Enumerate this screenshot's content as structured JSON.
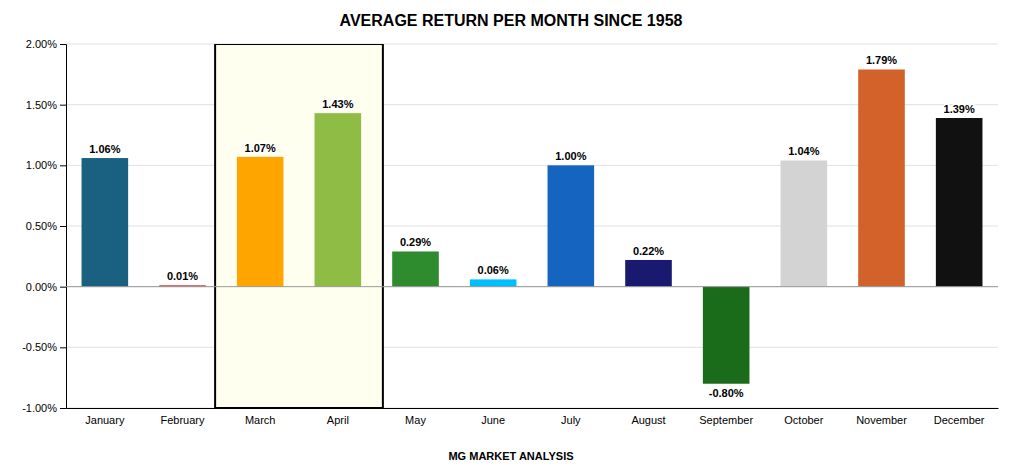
{
  "chart_data": {
    "type": "bar",
    "title": "AVERAGE RETURN PER MONTH SINCE 1958",
    "categories": [
      "January",
      "February",
      "March",
      "April",
      "May",
      "June",
      "July",
      "August",
      "September",
      "October",
      "November",
      "December"
    ],
    "values": [
      1.06,
      0.01,
      1.07,
      1.43,
      0.29,
      0.06,
      1.0,
      0.22,
      -0.8,
      1.04,
      1.79,
      1.39
    ],
    "value_labels": [
      "1.06%",
      "0.01%",
      "1.07%",
      "1.43%",
      "0.29%",
      "0.06%",
      "1.00%",
      "0.22%",
      "-0.80%",
      "1.04%",
      "1.79%",
      "1.39%"
    ],
    "colors": [
      "#1a6080",
      "#cc0000",
      "#ffa500",
      "#8fbc45",
      "#2e8b2e",
      "#00bfff",
      "#1565c0",
      "#191970",
      "#1a6b1a",
      "#d3d3d3",
      "#d2622a",
      "#111111"
    ],
    "highlight": [
      "March",
      "April"
    ],
    "annotations": [
      "MG MARKET ANALYSIS"
    ],
    "ylim": [
      -1.0,
      2.0
    ],
    "yticks": [
      {
        "value": -1.0,
        "label": "-1.00%"
      },
      {
        "value": -0.5,
        "label": "-0.50%"
      },
      {
        "value": 0.0,
        "label": "0.00%"
      },
      {
        "value": 0.5,
        "label": "0.50%"
      },
      {
        "value": 1.0,
        "label": "1.00%"
      },
      {
        "value": 1.5,
        "label": "1.50%"
      },
      {
        "value": 2.0,
        "label": "2.00%"
      }
    ],
    "grid": true,
    "data_labels": true
  }
}
